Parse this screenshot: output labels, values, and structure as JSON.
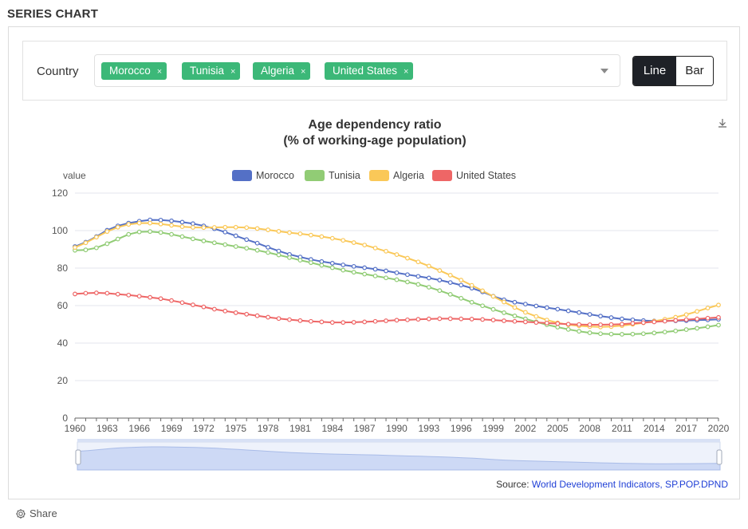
{
  "page": {
    "heading": "SERIES CHART"
  },
  "filter": {
    "label": "Country",
    "chips": [
      "Morocco",
      "Tunisia",
      "Algeria",
      "United States"
    ],
    "chip_remove": "×",
    "toggle": {
      "line": "Line",
      "bar": "Bar",
      "active": "Line"
    }
  },
  "source": {
    "prefix": "Source: ",
    "link": "World Development Indicators, SP.POP.DPND"
  },
  "share": {
    "label": "Share"
  },
  "chart_data": {
    "type": "line",
    "title": "Age dependency ratio",
    "subtitle": "(% of working-age population)",
    "ylabel": "value",
    "xlabel": "",
    "ylim": [
      0,
      120
    ],
    "yticks": [
      0,
      20,
      40,
      60,
      80,
      100,
      120
    ],
    "xticks": [
      1960,
      1963,
      1966,
      1969,
      1972,
      1975,
      1978,
      1981,
      1984,
      1987,
      1990,
      1993,
      1996,
      1999,
      2002,
      2005,
      2008,
      2011,
      2014,
      2017,
      2020
    ],
    "legend_position": "top-center",
    "grid": true,
    "x": [
      1960,
      1961,
      1962,
      1963,
      1964,
      1965,
      1966,
      1967,
      1968,
      1969,
      1970,
      1971,
      1972,
      1973,
      1974,
      1975,
      1976,
      1977,
      1978,
      1979,
      1980,
      1981,
      1982,
      1983,
      1984,
      1985,
      1986,
      1987,
      1988,
      1989,
      1990,
      1991,
      1992,
      1993,
      1994,
      1995,
      1996,
      1997,
      1998,
      1999,
      2000,
      2001,
      2002,
      2003,
      2004,
      2005,
      2006,
      2007,
      2008,
      2009,
      2010,
      2011,
      2012,
      2013,
      2014,
      2015,
      2016,
      2017,
      2018,
      2019,
      2020
    ],
    "series": [
      {
        "name": "Morocco",
        "color": "#5470c6",
        "values": [
          91.5,
          93.8,
          96.8,
          100.2,
          102.5,
          104.0,
          105.0,
          105.7,
          105.6,
          105.2,
          104.5,
          103.7,
          102.5,
          101.0,
          99.2,
          97.2,
          95.2,
          93.3,
          91.1,
          89.1,
          87.3,
          85.9,
          84.6,
          83.5,
          82.6,
          81.7,
          80.9,
          80.2,
          79.4,
          78.5,
          77.5,
          76.5,
          75.6,
          74.7,
          73.6,
          72.3,
          70.9,
          69.3,
          67.3,
          65.0,
          63.1,
          61.8,
          60.8,
          59.8,
          58.9,
          58.1,
          57.2,
          56.3,
          55.3,
          54.4,
          53.6,
          52.9,
          52.4,
          52.0,
          51.8,
          51.8,
          51.9,
          52.0,
          52.2,
          52.4,
          52.7
        ]
      },
      {
        "name": "Tunisia",
        "color": "#91cc75",
        "values": [
          89.5,
          89.7,
          90.8,
          93.0,
          95.5,
          98.0,
          99.3,
          99.5,
          99.0,
          98.0,
          96.8,
          95.6,
          94.5,
          93.5,
          92.5,
          91.5,
          90.6,
          89.5,
          88.3,
          87.0,
          85.6,
          84.2,
          82.9,
          81.5,
          80.2,
          78.9,
          77.8,
          76.8,
          75.8,
          74.8,
          73.8,
          72.6,
          71.3,
          69.8,
          68.0,
          66.0,
          63.9,
          61.8,
          59.9,
          58.0,
          56.2,
          54.5,
          52.9,
          51.3,
          49.8,
          48.5,
          47.3,
          46.3,
          45.5,
          45.0,
          44.8,
          44.7,
          44.8,
          45.0,
          45.4,
          45.9,
          46.5,
          47.2,
          47.9,
          48.7,
          49.6
        ]
      },
      {
        "name": "Algeria",
        "color": "#fac858",
        "values": [
          91.0,
          93.5,
          96.5,
          99.5,
          101.8,
          103.3,
          104.0,
          104.0,
          103.5,
          102.8,
          102.1,
          101.7,
          101.6,
          101.7,
          101.8,
          101.8,
          101.6,
          101.1,
          100.4,
          99.6,
          98.9,
          98.3,
          97.6,
          96.8,
          95.9,
          94.8,
          93.6,
          92.3,
          90.7,
          89.0,
          87.2,
          85.3,
          83.3,
          81.1,
          78.7,
          76.2,
          73.6,
          70.8,
          67.9,
          64.9,
          61.9,
          59.0,
          56.4,
          54.2,
          52.3,
          50.8,
          49.8,
          49.2,
          48.8,
          48.6,
          48.8,
          49.3,
          50.0,
          50.8,
          51.7,
          52.7,
          53.8,
          55.2,
          56.9,
          58.7,
          60.3
        ]
      },
      {
        "name": "United States",
        "color": "#ee6666",
        "values": [
          66.2,
          66.6,
          66.8,
          66.6,
          66.1,
          65.6,
          65.0,
          64.4,
          63.7,
          62.7,
          61.6,
          60.4,
          59.3,
          58.1,
          57.1,
          56.2,
          55.4,
          54.6,
          53.8,
          53.1,
          52.5,
          52.0,
          51.6,
          51.3,
          51.0,
          51.0,
          51.1,
          51.3,
          51.6,
          51.9,
          52.2,
          52.4,
          52.7,
          52.9,
          53.0,
          53.0,
          52.9,
          52.8,
          52.6,
          52.3,
          51.9,
          51.6,
          51.3,
          51.0,
          50.7,
          50.4,
          50.1,
          49.9,
          49.8,
          49.8,
          49.9,
          50.1,
          50.5,
          50.9,
          51.3,
          51.7,
          52.1,
          52.5,
          52.9,
          53.3,
          53.7
        ]
      }
    ]
  }
}
